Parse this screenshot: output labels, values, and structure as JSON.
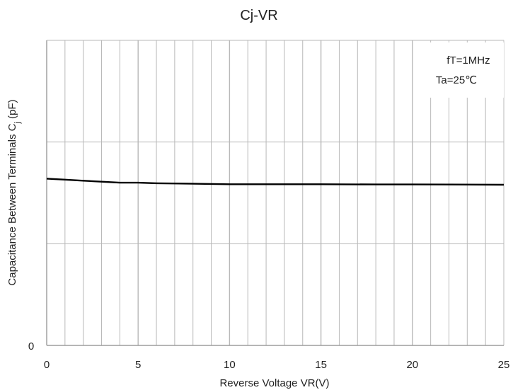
{
  "chart_data": {
    "type": "line",
    "title": "Cj-VR",
    "xlabel": "Reverse Voltage   VR(V)",
    "ylabel_main": "Capacitance Between Terminals C",
    "ylabel_sub": "j",
    "ylabel_unit": " (pF)",
    "xlim": [
      0,
      25
    ],
    "x_ticks": [
      0,
      5,
      10,
      15,
      20,
      25
    ],
    "x_minor_step": 1,
    "y_levels": 3,
    "y_tick_labels": [
      "0"
    ],
    "grid": true,
    "annotations": [
      "fT=1MHz",
      "Ta=25℃"
    ],
    "annotation_placement": "top-right",
    "series": [
      {
        "x": [
          0,
          1,
          2,
          3,
          4,
          5,
          6,
          8,
          10,
          12,
          15,
          18,
          20,
          22,
          25
        ],
        "y": [
          1.64,
          1.63,
          1.62,
          1.61,
          1.6,
          1.6,
          1.595,
          1.59,
          1.585,
          1.585,
          1.585,
          1.583,
          1.583,
          1.582,
          1.58
        ]
      }
    ],
    "line_color": "#000000",
    "grid_color": "#b8b8b8"
  }
}
